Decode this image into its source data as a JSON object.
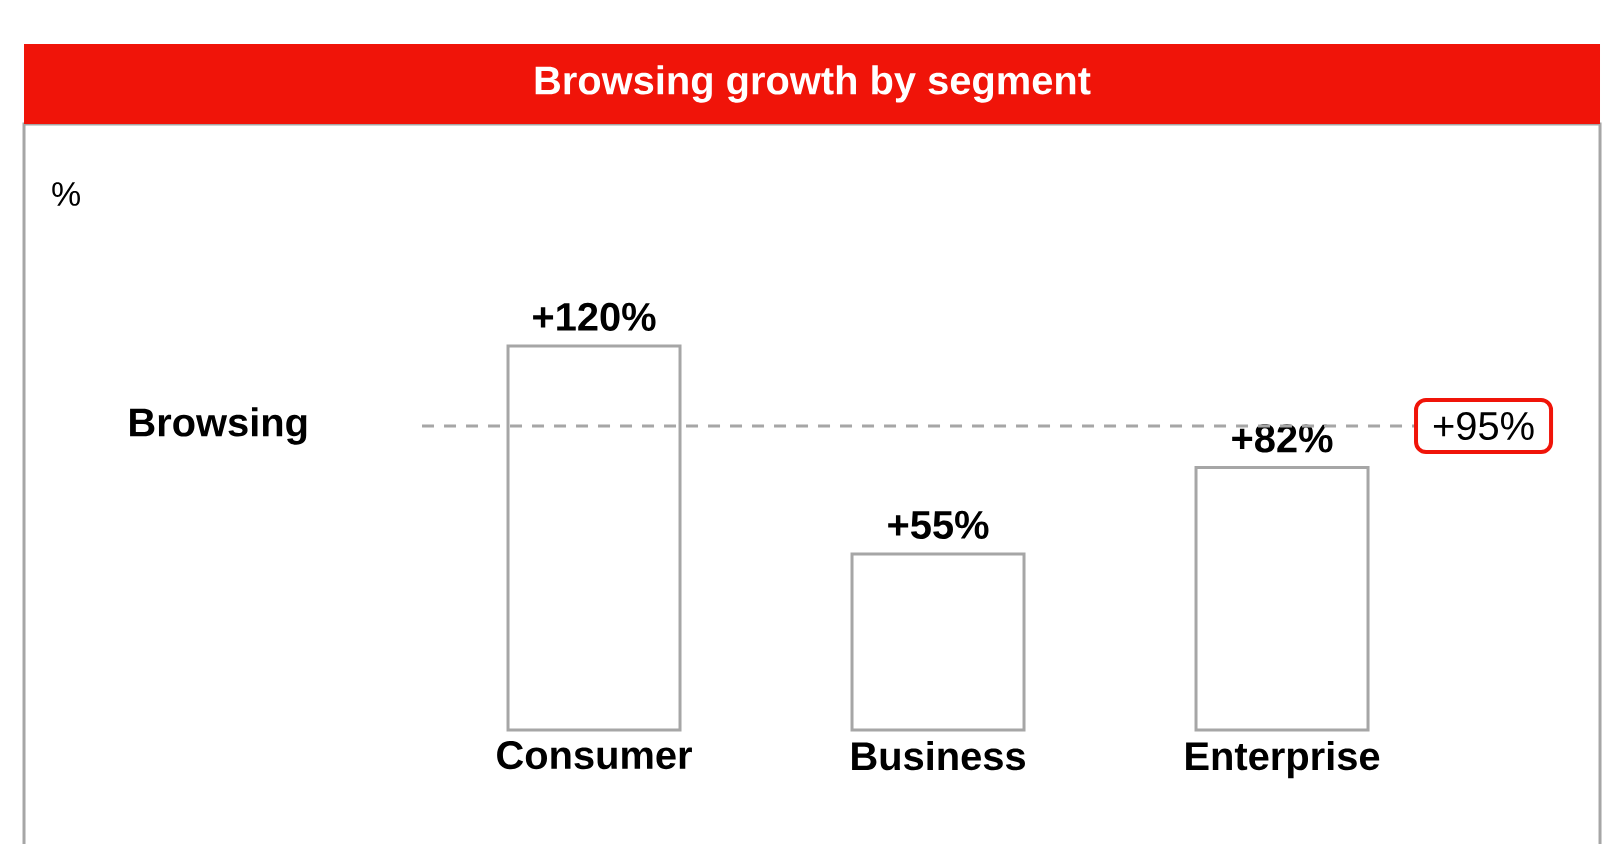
{
  "chart_data": {
    "type": "bar",
    "title": "Browsing growth by segment",
    "categories": [
      "Consumer",
      "Business",
      "Enterprise"
    ],
    "values": [
      120,
      55,
      82
    ],
    "value_labels": [
      "+120%",
      "+55%",
      "+82%"
    ],
    "color": "#a6a6a6",
    "tick_labels": "x",
    "ref_lines": [
      {
        "axis": "y",
        "value": 95,
        "label": "+95%",
        "color": "#a6a6a6",
        "line_style": "dashed"
      }
    ],
    "annotations": [
      "%",
      "Browsing"
    ]
  }
}
